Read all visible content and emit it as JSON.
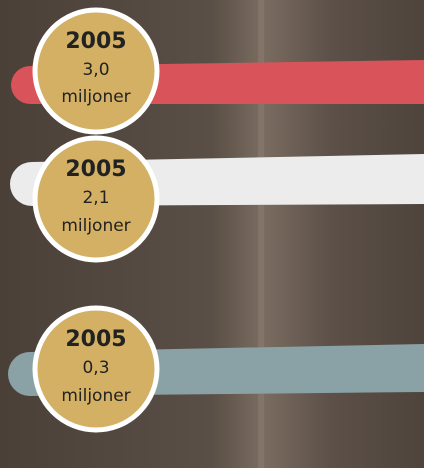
{
  "items": [
    {
      "year": "2005",
      "value": "3,0",
      "unit": "miljoner"
    },
    {
      "year": "2005",
      "value": "2,1",
      "unit": "miljoner"
    },
    {
      "year": "2005",
      "value": "0,3",
      "unit": "miljoner"
    }
  ]
}
